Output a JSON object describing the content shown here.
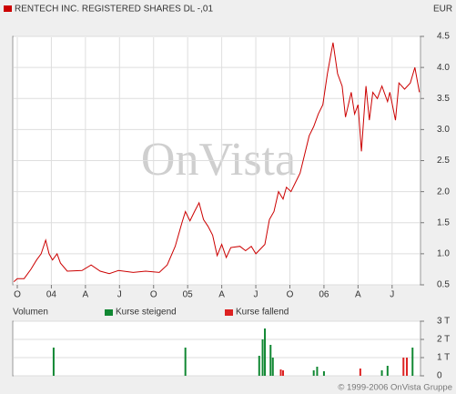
{
  "chart_data": [
    {
      "type": "line",
      "currency": "EUR",
      "watermark": "OnVista",
      "series": [
        {
          "name": "RENTECH INC. REGISTERED SHARES DL -,01",
          "color": "#cc0000",
          "x": [
            -0.3,
            0,
            0.6,
            1.2,
            1.7,
            2.1,
            2.5,
            2.8,
            3.1,
            3.5,
            3.8,
            4.4,
            5.7,
            6.5,
            7.3,
            8.1,
            8.9,
            10.2,
            11.3,
            12.5,
            13.2,
            13.9,
            14.5,
            14.8,
            15.2,
            15.6,
            16.0,
            16.4,
            16.8,
            17.2,
            17.6,
            18,
            18.4,
            18.8,
            19.6,
            20.1,
            20.6,
            21,
            21.8,
            22.2,
            22.6,
            23,
            23.4,
            23.7,
            24.1,
            24.5,
            24.9,
            25.3,
            25.7,
            26.1,
            26.5,
            26.9,
            27.3,
            27.8,
            28.2,
            28.6,
            28.9,
            29.4,
            29.7,
            30,
            30.3,
            30.7,
            31,
            31.3,
            31.7,
            32.1,
            32.6,
            32.8,
            33.3,
            33.6,
            34.1,
            34.6,
            35,
            35.4
          ],
          "values": [
            0.55,
            0.6,
            0.6,
            0.75,
            0.9,
            1.0,
            1.22,
            1.0,
            0.9,
            1.0,
            0.85,
            0.72,
            0.73,
            0.82,
            0.72,
            0.68,
            0.73,
            0.7,
            0.72,
            0.7,
            0.82,
            1.12,
            1.5,
            1.68,
            1.53,
            1.68,
            1.82,
            1.55,
            1.44,
            1.3,
            0.97,
            1.15,
            0.94,
            1.1,
            1.12,
            1.05,
            1.12,
            1.0,
            1.15,
            1.55,
            1.68,
            2.0,
            1.88,
            2.07,
            2.0,
            2.15,
            2.3,
            2.6,
            2.9,
            3.05,
            3.25,
            3.4,
            3.9,
            4.4,
            3.9,
            3.7,
            3.2,
            3.6,
            3.25,
            3.4,
            2.65,
            3.7,
            3.15,
            3.6,
            3.5,
            3.7,
            3.45,
            3.6,
            3.15,
            3.75,
            3.65,
            3.75,
            4.0,
            3.6
          ]
        }
      ],
      "xlim": [
        -0.4,
        35.5
      ],
      "xticks": [
        {
          "value": 0,
          "label": "O"
        },
        {
          "value": 3,
          "label": "04"
        },
        {
          "value": 6,
          "label": "A"
        },
        {
          "value": 9,
          "label": "J"
        },
        {
          "value": 12,
          "label": "O"
        },
        {
          "value": 15,
          "label": "05"
        },
        {
          "value": 18,
          "label": "A"
        },
        {
          "value": 21,
          "label": "J"
        },
        {
          "value": 24,
          "label": "O"
        },
        {
          "value": 27,
          "label": "06"
        },
        {
          "value": 30,
          "label": "A"
        },
        {
          "value": 33,
          "label": "J"
        }
      ],
      "ylim": [
        0.5,
        4.5
      ],
      "yticks": [
        0.5,
        {
          "value": 1,
          "label": "1.0"
        },
        1.5,
        {
          "value": 2,
          "label": "2.0"
        },
        2.5,
        {
          "value": 3,
          "label": "3.0"
        },
        3.5,
        {
          "value": 4,
          "label": "4.0"
        },
        4.5
      ],
      "grid": true
    },
    {
      "type": "bar",
      "title": "Volumen",
      "series": [
        {
          "name": "Kurse steigend",
          "color": "#118833",
          "x": [
            3.2,
            14.8,
            21.3,
            21.6,
            21.8,
            22.3,
            22.5,
            26.1,
            26.4,
            27,
            32.1,
            32.6,
            34.8
          ],
          "values": [
            1.55,
            1.55,
            1.1,
            2.0,
            2.6,
            1.7,
            1.0,
            0.3,
            0.5,
            0.25,
            0.3,
            0.55,
            1.55
          ]
        },
        {
          "name": "Kurse fallend",
          "color": "#dd2222",
          "x": [
            23.2,
            23.4,
            30.2,
            34.0,
            34.3
          ],
          "values": [
            0.35,
            0.3,
            0.4,
            1.0,
            1.0
          ]
        }
      ],
      "xlim": [
        -0.4,
        35.5
      ],
      "ylim": [
        0,
        3
      ],
      "yticks": [
        0,
        {
          "value": 1,
          "label": "1 T"
        },
        {
          "value": 2,
          "label": "2 T"
        },
        {
          "value": 3,
          "label": "3 T"
        }
      ],
      "grid": true
    }
  ],
  "footer": "© 1999-2006 OnVista Gruppe"
}
